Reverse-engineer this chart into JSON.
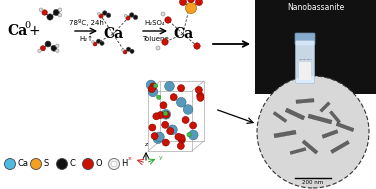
{
  "title": "Nanobassanite",
  "scale_bar": "200 nm",
  "legend_items": [
    {
      "label": "Ca",
      "color": "#4DBBE0"
    },
    {
      "label": "S",
      "color": "#F5A020"
    },
    {
      "label": "C",
      "color": "#111111"
    },
    {
      "label": "O",
      "color": "#CC1100"
    },
    {
      "label": "H",
      "color": "#DDDDDD"
    }
  ],
  "step1_text_top": "78ºC, 24h",
  "step1_text_bot": "H₂↑",
  "step2_text_top": "H₂SO₄",
  "step2_text_bot": "Toluene",
  "ca0_label": "Ca",
  "ca0_super": "0",
  "ca_label1": "Ca",
  "ca_label2": "Ca",
  "bg_color": "#FFFFFF",
  "dark_bg": "#111111",
  "atom_ca_color": "#4DBBE0",
  "atom_s_color": "#F5A020",
  "atom_c_color": "#111111",
  "atom_o_color": "#CC1100",
  "atom_h_color": "#DDDDDD",
  "atom_h_edge": "#888888",
  "cell_ca_color": "#5599BB",
  "cell_o_color": "#CC1100",
  "cell_s_color": "#44BB44"
}
